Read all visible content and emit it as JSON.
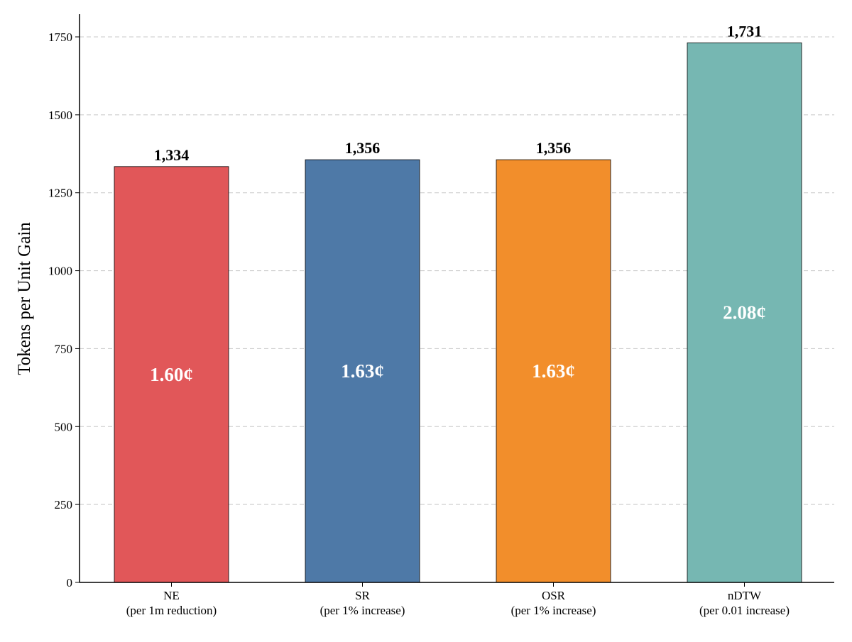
{
  "chart_data": {
    "type": "bar",
    "title": "",
    "xlabel": "",
    "ylabel": "Tokens per Unit Gain",
    "ylim": [
      0,
      1800
    ],
    "yticks": [
      0,
      250,
      500,
      750,
      1000,
      1250,
      1500,
      1750
    ],
    "grid": "y-dashed",
    "categories": [
      {
        "name": "NE",
        "sub": "(per 1m reduction)"
      },
      {
        "name": "SR",
        "sub": "(per 1% increase)"
      },
      {
        "name": "OSR",
        "sub": "(per 1% increase)"
      },
      {
        "name": "nDTW",
        "sub": "(per 0.01 increase)"
      }
    ],
    "values": [
      1334,
      1356,
      1356,
      1731
    ],
    "value_labels": [
      "1,334",
      "1,356",
      "1,356",
      "1,731"
    ],
    "cost_labels": [
      "1.60¢",
      "1.63¢",
      "1.63¢",
      "2.08¢"
    ],
    "colors": [
      "#E15759",
      "#4E79A7",
      "#F28E2B",
      "#76B7B2"
    ]
  }
}
